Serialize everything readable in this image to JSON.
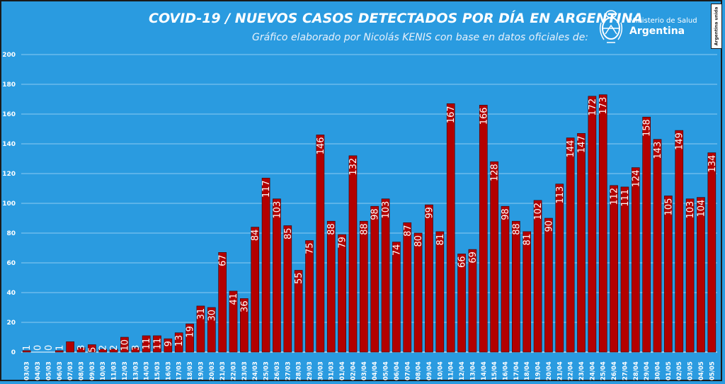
{
  "header": {
    "title": "COVID-19  /  NUEVOS CASOS DETECTADOS POR DÍA EN ARGENTINA",
    "subtitle": "Gráfico elaborado por Nicolás KENIS con base en datos oficiales de:"
  },
  "logo": {
    "line1": "Ministerio de Salud",
    "line2": "Argentina",
    "icon": "argentina-coat-of-arms-icon"
  },
  "badge": {
    "text": "Argentina unida"
  },
  "colors": {
    "background": "#2a9be0",
    "bar": "#b30000",
    "bar_border": "#3a0000",
    "grid": "#8ccbf2",
    "text": "#ffffff"
  },
  "chart_data": {
    "type": "bar",
    "title": "COVID-19  /  NUEVOS CASOS DETECTADOS POR DÍA EN ARGENTINA",
    "xlabel": "",
    "ylabel": "",
    "ylim": [
      0,
      200
    ],
    "yticks": [
      0,
      20,
      40,
      60,
      80,
      100,
      120,
      140,
      160,
      180,
      200
    ],
    "grid": true,
    "categories": [
      "03/03",
      "04/03",
      "05/03",
      "06/03",
      "07/03",
      "08/03",
      "09/03",
      "10/03",
      "11/03",
      "12/03",
      "13/03",
      "14/03",
      "15/03",
      "16/03",
      "17/03",
      "18/03",
      "19/03",
      "20/03",
      "21/03",
      "22/03",
      "23/03",
      "24/03",
      "25/03",
      "26/03",
      "27/03",
      "28/03",
      "29/03",
      "30/03",
      "31/03",
      "01/04",
      "02/04",
      "03/04",
      "04/04",
      "05/04",
      "06/04",
      "07/04",
      "08/04",
      "09/04",
      "10/04",
      "11/04",
      "12/04",
      "13/04",
      "14/04",
      "15/04",
      "16/04",
      "17/04",
      "18/04",
      "19/04",
      "20/04",
      "21/04",
      "22/04",
      "23/04",
      "24/04",
      "25/04",
      "26/04",
      "27/04",
      "28/04",
      "29/04",
      "30/04",
      "01/05",
      "02/05",
      "03/05",
      "04/05",
      "05/05"
    ],
    "values": [
      1,
      0,
      0,
      1,
      7,
      3,
      5,
      2,
      2,
      10,
      3,
      11,
      11,
      9,
      13,
      19,
      31,
      30,
      67,
      41,
      36,
      84,
      117,
      103,
      85,
      55,
      75,
      146,
      88,
      79,
      132,
      88,
      98,
      103,
      74,
      87,
      80,
      99,
      81,
      167,
      66,
      69,
      166,
      128,
      98,
      88,
      81,
      102,
      90,
      113,
      144,
      147,
      172,
      173,
      112,
      111,
      124,
      158,
      143,
      105,
      149,
      103,
      104,
      134
    ],
    "labels": [
      "1",
      "0",
      "0",
      "1",
      "",
      "3",
      "5",
      "2",
      "2",
      "10",
      "3",
      "11",
      "11",
      "9",
      "13",
      "19",
      "31",
      "30",
      "67",
      "41",
      "36",
      "84",
      "117",
      "103",
      "85",
      "55",
      "75",
      "146",
      "88",
      "79",
      "132",
      "88",
      "98",
      "103",
      "74",
      "87",
      "80",
      "99",
      "81",
      "167",
      "66",
      "69",
      "166",
      "128",
      "98",
      "88",
      "81",
      "102",
      "90",
      "113",
      "144",
      "147",
      "172",
      "173",
      "112",
      "111",
      "124",
      "158",
      "143",
      "105",
      "149",
      "103",
      "104",
      "134"
    ]
  }
}
